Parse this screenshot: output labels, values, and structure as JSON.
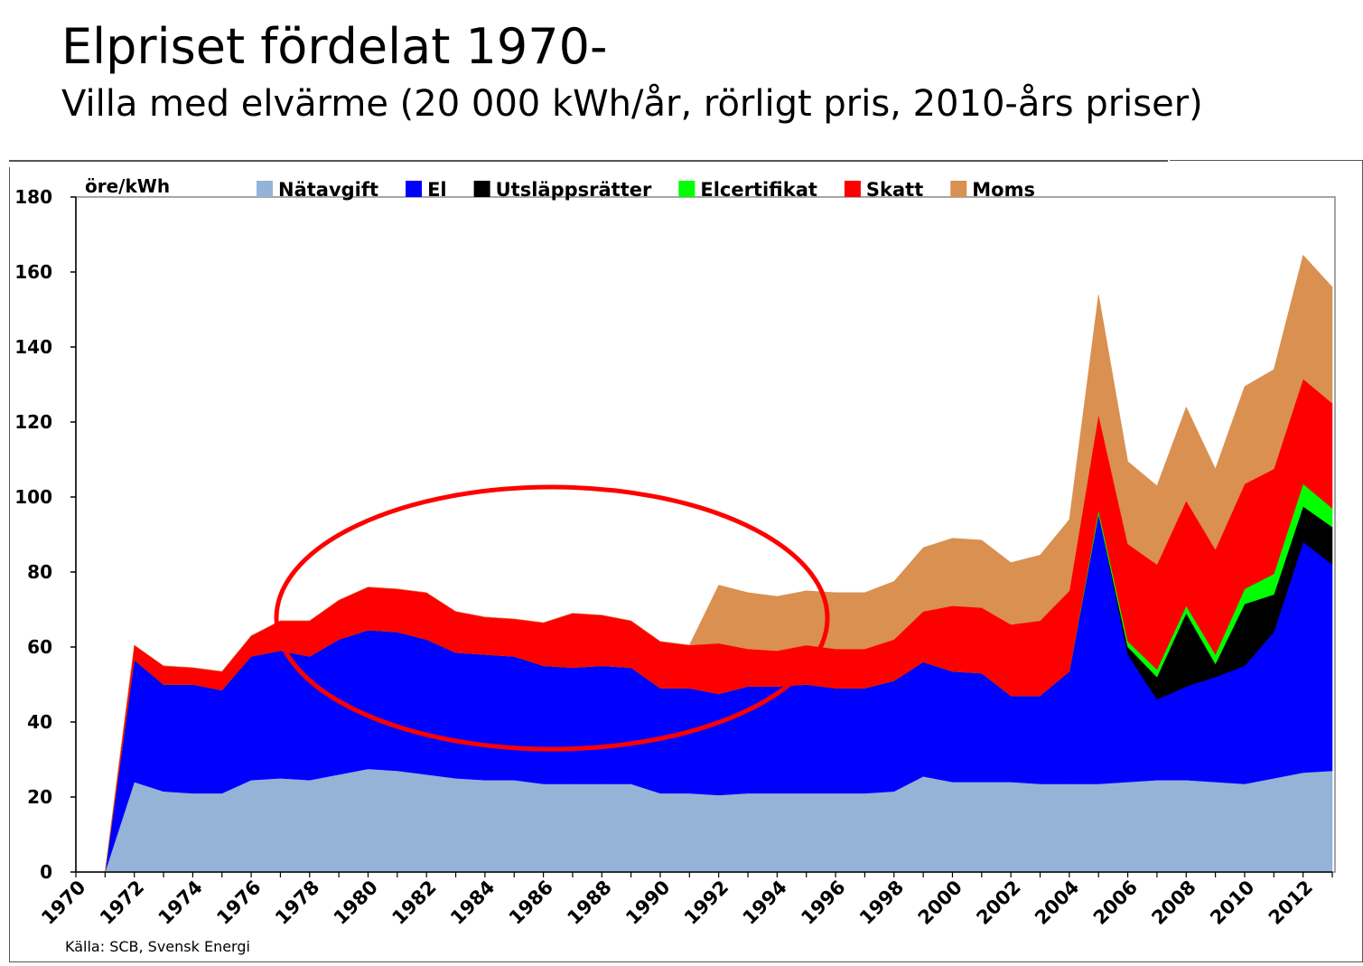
{
  "slide": {
    "title": "Elpriset fördelat 1970-",
    "subtitle": "Villa med elvärme (20 000 kWh/år, rörligt pris, 2010-års priser)",
    "source": "Källa: SCB, Svensk Energi"
  },
  "chart_data": {
    "type": "area",
    "stacked": true,
    "ylabel": "öre/kWh",
    "ylim": [
      0,
      180
    ],
    "yticks": [
      0,
      20,
      40,
      60,
      80,
      100,
      120,
      140,
      160,
      180
    ],
    "xlim": [
      1970,
      2013
    ],
    "xticks": [
      1970,
      1972,
      1974,
      1976,
      1978,
      1980,
      1982,
      1984,
      1986,
      1988,
      1990,
      1992,
      1994,
      1996,
      1998,
      2000,
      2002,
      2004,
      2006,
      2008,
      2010,
      2012
    ],
    "legend_position": "top",
    "grid": false,
    "annotation": "red ellipse highlighting 1977-1994",
    "x": [
      1971,
      1972,
      1973,
      1974,
      1975,
      1976,
      1977,
      1978,
      1979,
      1980,
      1981,
      1982,
      1983,
      1984,
      1985,
      1986,
      1987,
      1988,
      1989,
      1990,
      1991,
      1992,
      1993,
      1994,
      1995,
      1996,
      1997,
      1998,
      1999,
      2000,
      2001,
      2002,
      2003,
      2004,
      2005,
      2006,
      2007,
      2008,
      2009,
      2010,
      2011,
      2012,
      2013
    ],
    "series": [
      {
        "name": "Nätavgift",
        "color": "#95B3D7",
        "values": [
          0,
          24,
          21.5,
          21,
          21,
          24.5,
          25,
          24.5,
          26,
          27.5,
          27,
          26,
          25,
          24.5,
          24.5,
          23.5,
          23.5,
          23.5,
          23.5,
          21,
          21,
          20.5,
          21,
          21,
          21,
          21,
          21,
          21.5,
          25.5,
          24,
          24,
          24,
          23.5,
          23.5,
          23.5,
          24,
          24.5,
          24.5,
          24,
          23.5,
          25,
          26.5,
          27
        ]
      },
      {
        "name": "El",
        "color": "#0000FF",
        "values": [
          0,
          32.5,
          28.5,
          29,
          27.5,
          33,
          34,
          33,
          36,
          37,
          37,
          36,
          33.5,
          33.5,
          33,
          31.5,
          31,
          31.5,
          31,
          28,
          28,
          27,
          28.5,
          28.5,
          29,
          28,
          28,
          29.5,
          30.5,
          29.5,
          29,
          23,
          23.5,
          30,
          72,
          34,
          21.5,
          25,
          28,
          31.5,
          39,
          61.5,
          55
        ]
      },
      {
        "name": "Utsläppsrätter",
        "color": "#000000",
        "values": [
          0,
          0,
          0,
          0,
          0,
          0,
          0,
          0,
          0,
          0,
          0,
          0,
          0,
          0,
          0,
          0,
          0,
          0,
          0,
          0,
          0,
          0,
          0,
          0,
          0,
          0,
          0,
          0,
          0,
          0,
          0,
          0,
          0,
          0,
          0,
          2,
          6,
          19.5,
          3.5,
          16.5,
          10,
          9.5,
          10
        ]
      },
      {
        "name": "Elcertifikat",
        "color": "#00FF00",
        "values": [
          0,
          0,
          0,
          0,
          0,
          0,
          0,
          0,
          0,
          0,
          0,
          0,
          0,
          0,
          0,
          0,
          0,
          0,
          0,
          0,
          0,
          0,
          0,
          0,
          0,
          0,
          0,
          0,
          0,
          0,
          0,
          0,
          0,
          0,
          1,
          1.5,
          2,
          2,
          2.5,
          4,
          5.5,
          6,
          5
        ]
      },
      {
        "name": "Skatt",
        "color": "#FF0000",
        "values": [
          0,
          4,
          5,
          4.5,
          5,
          5.5,
          8,
          9.5,
          10.5,
          11.5,
          11.5,
          12.5,
          11,
          10,
          10,
          11.5,
          14.5,
          13.5,
          12.5,
          12.5,
          11.5,
          13.5,
          10,
          9.5,
          10.5,
          10.5,
          10.5,
          11,
          13.5,
          17.5,
          17.5,
          19,
          20,
          21.5,
          25.5,
          26,
          28,
          28,
          28,
          28,
          28,
          28,
          28
        ]
      },
      {
        "name": "Moms",
        "color": "#D99050",
        "values": [
          0,
          0,
          0,
          0,
          0,
          0,
          0,
          0,
          0,
          0,
          0,
          0,
          0,
          0,
          0,
          0,
          0,
          0,
          0,
          0,
          0,
          15.5,
          15,
          14.5,
          14.5,
          15,
          15,
          15.5,
          17,
          18,
          18,
          16.5,
          17.5,
          19,
          32,
          22,
          21,
          25,
          21.5,
          26,
          26.5,
          33,
          31
        ]
      }
    ]
  }
}
